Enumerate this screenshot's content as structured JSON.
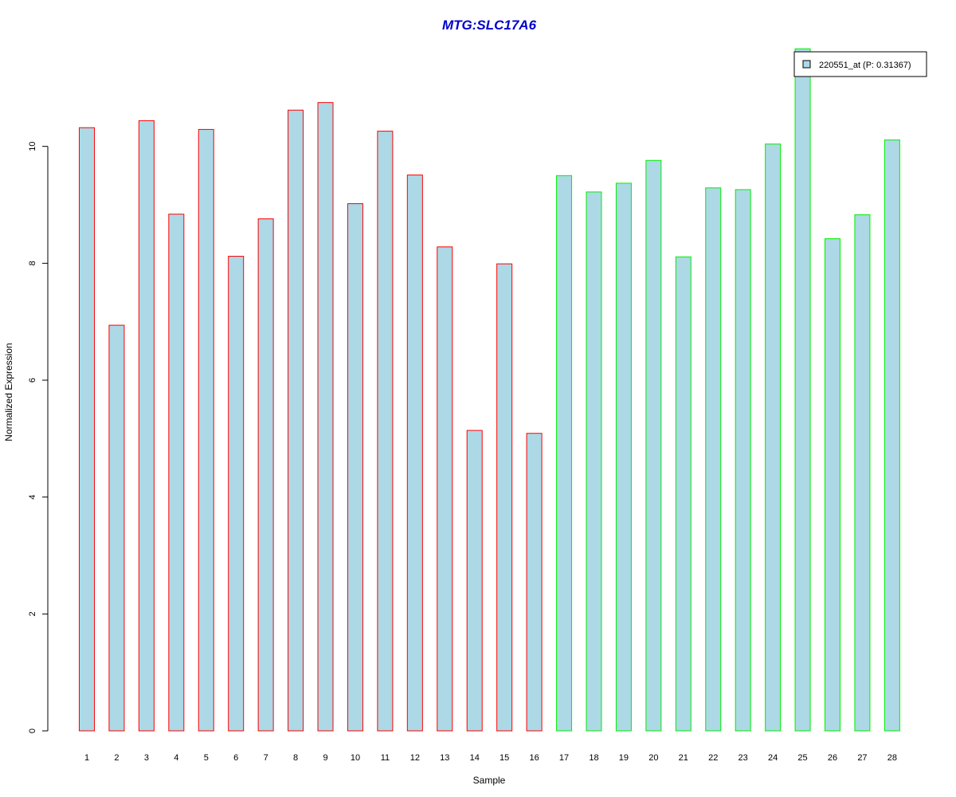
{
  "chart_data": {
    "type": "bar",
    "title": "MTG:SLC17A6",
    "xlabel": "Sample",
    "ylabel": "Normalized Expression",
    "ylim": [
      0,
      11.7
    ],
    "yticks": [
      "0",
      "2",
      "4",
      "6",
      "8",
      "10"
    ],
    "categories": [
      "1",
      "2",
      "3",
      "4",
      "5",
      "6",
      "7",
      "8",
      "9",
      "10",
      "11",
      "12",
      "13",
      "14",
      "15",
      "16",
      "17",
      "18",
      "19",
      "20",
      "21",
      "22",
      "23",
      "24",
      "25",
      "26",
      "27",
      "28"
    ],
    "values": [
      10.32,
      6.94,
      10.44,
      8.84,
      10.29,
      8.12,
      8.76,
      10.62,
      10.75,
      9.02,
      10.26,
      9.51,
      8.28,
      5.14,
      7.99,
      5.09,
      9.5,
      9.22,
      9.37,
      9.76,
      8.11,
      9.29,
      9.26,
      10.04,
      11.67,
      8.42,
      8.83,
      10.11
    ],
    "group_colors": [
      "#ff0000",
      "#ff0000",
      "#ff0000",
      "#ff0000",
      "#ff0000",
      "#ff0000",
      "#ff0000",
      "#ff0000",
      "#ff0000",
      "#ff0000",
      "#ff0000",
      "#ff0000",
      "#ff0000",
      "#ff0000",
      "#ff0000",
      "#ff0000",
      "#00ee00",
      "#00ee00",
      "#00ee00",
      "#00ee00",
      "#00ee00",
      "#00ee00",
      "#00ee00",
      "#00ee00",
      "#00ee00",
      "#00ee00",
      "#00ee00",
      "#00ee00"
    ],
    "fill_color": "#add8e6",
    "grid": false,
    "legend": {
      "placement": "top-right",
      "entries": [
        {
          "label": "220551_at (P: 0.31367)",
          "color": "#add8e6"
        }
      ]
    }
  }
}
